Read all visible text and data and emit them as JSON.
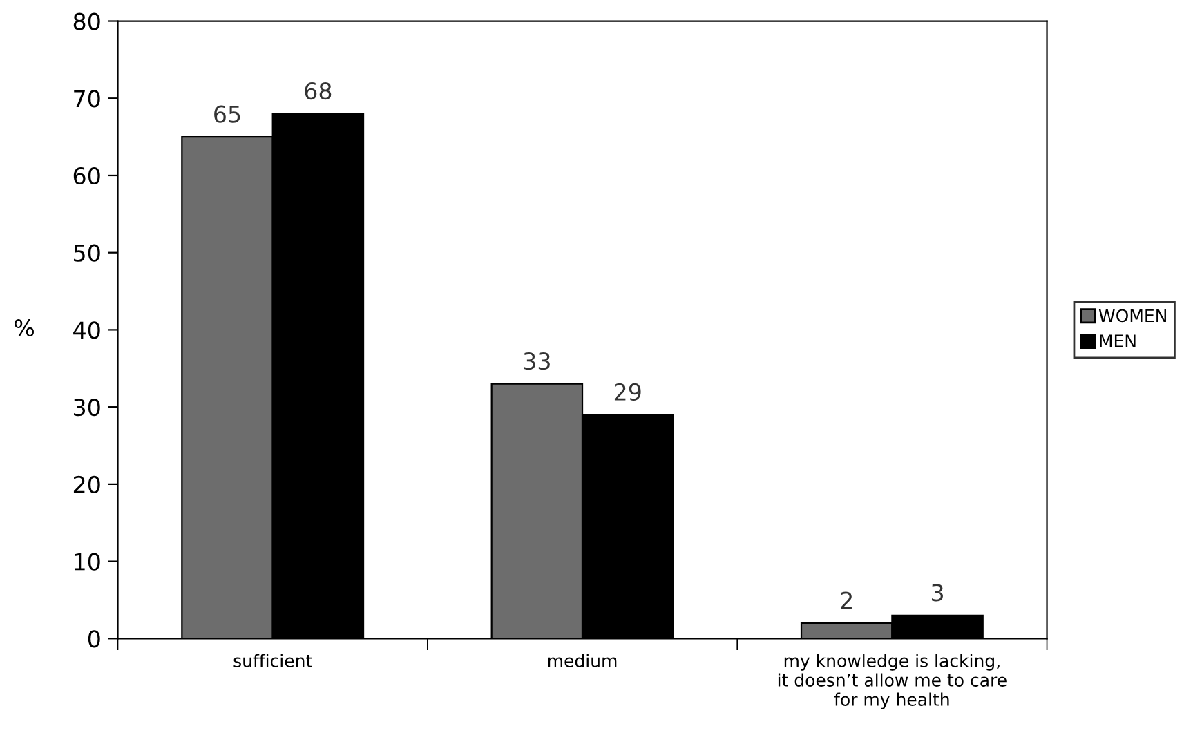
{
  "chart_data": {
    "type": "bar",
    "ylabel": "%",
    "categories": [
      "sufficient",
      "medium",
      "my knowledge is lacking,\nit doesn’t allow me to care\nfor my health"
    ],
    "series": [
      {
        "name": "WOMEN",
        "color": "#6d6d6d",
        "values": [
          65,
          33,
          2
        ]
      },
      {
        "name": "MEN",
        "color": "#000000",
        "values": [
          68,
          29,
          3
        ]
      }
    ],
    "ylim": [
      0,
      80
    ],
    "yticks": [
      0,
      10,
      20,
      30,
      40,
      50,
      60,
      70,
      80
    ],
    "data_labels": true,
    "legend": "right",
    "grid": false
  }
}
